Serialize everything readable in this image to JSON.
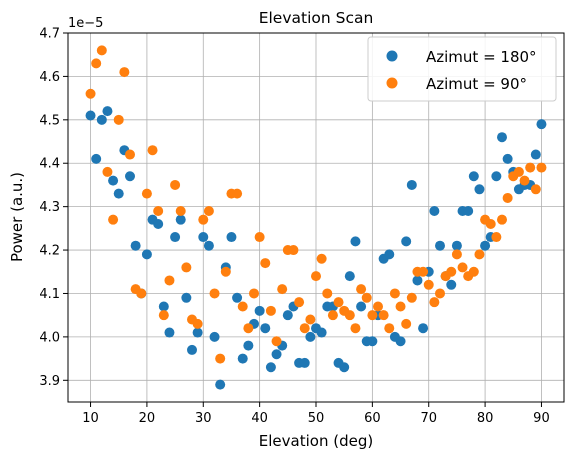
{
  "chart_data": {
    "type": "scatter",
    "title": "Elevation Scan",
    "xlabel": "Elevation (deg)",
    "ylabel": "Power (a.u.)",
    "y_offset_label": "1e−5",
    "xlim": [
      6.0,
      94.0
    ],
    "ylim": [
      3.85,
      4.7
    ],
    "x_ticks": [
      10,
      20,
      30,
      40,
      50,
      60,
      70,
      80,
      90
    ],
    "y_ticks": [
      3.9,
      4.0,
      4.1,
      4.2,
      4.3,
      4.4,
      4.5,
      4.6,
      4.7
    ],
    "grid": true,
    "legend_position": "top-right",
    "series": [
      {
        "name": "Azimut = 180°",
        "color": "#1f77b4",
        "x": [
          10,
          11,
          12,
          13,
          14,
          15,
          16,
          17,
          18,
          19,
          20,
          21,
          22,
          23,
          24,
          25,
          26,
          27,
          28,
          29,
          30,
          31,
          32,
          33,
          34,
          35,
          36,
          37,
          38,
          39,
          40,
          41,
          42,
          43,
          44,
          45,
          46,
          47,
          48,
          49,
          50,
          51,
          52,
          53,
          54,
          55,
          56,
          57,
          58,
          59,
          60,
          61,
          62,
          63,
          64,
          65,
          66,
          67,
          68,
          69,
          70,
          71,
          72,
          73,
          74,
          75,
          76,
          77,
          78,
          79,
          80,
          81,
          82,
          83,
          84,
          85,
          86,
          87,
          88,
          89,
          90
        ],
        "y": [
          4.51,
          4.41,
          4.5,
          4.52,
          4.36,
          4.33,
          4.43,
          4.37,
          4.21,
          4.1,
          4.19,
          4.27,
          4.26,
          4.07,
          4.01,
          4.23,
          4.27,
          4.09,
          3.97,
          4.01,
          4.23,
          4.21,
          4.0,
          3.89,
          4.16,
          4.23,
          4.09,
          3.95,
          3.98,
          4.03,
          4.06,
          4.02,
          3.93,
          3.96,
          3.98,
          4.05,
          4.07,
          3.94,
          3.94,
          4.0,
          4.02,
          4.01,
          4.07,
          4.07,
          3.94,
          3.93,
          4.14,
          4.22,
          4.07,
          3.99,
          3.99,
          4.05,
          4.18,
          4.19,
          4.0,
          3.99,
          4.22,
          4.35,
          4.13,
          4.02,
          4.15,
          4.29,
          4.21,
          4.14,
          4.12,
          4.21,
          4.29,
          4.29,
          4.37,
          4.34,
          4.21,
          4.23,
          4.37,
          4.46,
          4.41,
          4.38,
          4.34,
          4.35,
          4.35,
          4.42,
          4.49
        ]
      },
      {
        "name": "Azimut = 90°",
        "color": "#ff7f0e",
        "x": [
          10,
          11,
          12,
          13,
          14,
          15,
          16,
          17,
          18,
          19,
          20,
          21,
          22,
          23,
          24,
          25,
          26,
          27,
          28,
          29,
          30,
          31,
          32,
          33,
          34,
          35,
          36,
          37,
          38,
          39,
          40,
          41,
          42,
          43,
          44,
          45,
          46,
          47,
          48,
          49,
          50,
          51,
          52,
          53,
          54,
          55,
          56,
          57,
          58,
          59,
          60,
          61,
          62,
          63,
          64,
          65,
          66,
          67,
          68,
          69,
          70,
          71,
          72,
          73,
          74,
          75,
          76,
          77,
          78,
          79,
          80,
          81,
          82,
          83,
          84,
          85,
          86,
          87,
          88,
          89,
          90
        ],
        "y": [
          4.56,
          4.63,
          4.66,
          4.38,
          4.27,
          4.5,
          4.61,
          4.42,
          4.11,
          4.1,
          4.33,
          4.43,
          4.29,
          4.05,
          4.13,
          4.35,
          4.29,
          4.16,
          4.04,
          4.03,
          4.27,
          4.29,
          4.1,
          3.95,
          4.15,
          4.33,
          4.33,
          4.07,
          4.02,
          4.1,
          4.23,
          4.17,
          4.06,
          3.99,
          4.11,
          4.2,
          4.2,
          4.08,
          4.02,
          4.04,
          4.14,
          4.18,
          4.1,
          4.05,
          4.08,
          4.06,
          4.05,
          4.02,
          4.11,
          4.09,
          4.05,
          4.07,
          4.05,
          4.02,
          4.1,
          4.07,
          4.03,
          4.09,
          4.15,
          4.15,
          4.12,
          4.08,
          4.1,
          4.14,
          4.15,
          4.19,
          4.16,
          4.14,
          4.15,
          4.19,
          4.27,
          4.26,
          4.23,
          4.27,
          4.32,
          4.37,
          4.38,
          4.36,
          4.39,
          4.34,
          4.39
        ]
      }
    ]
  }
}
